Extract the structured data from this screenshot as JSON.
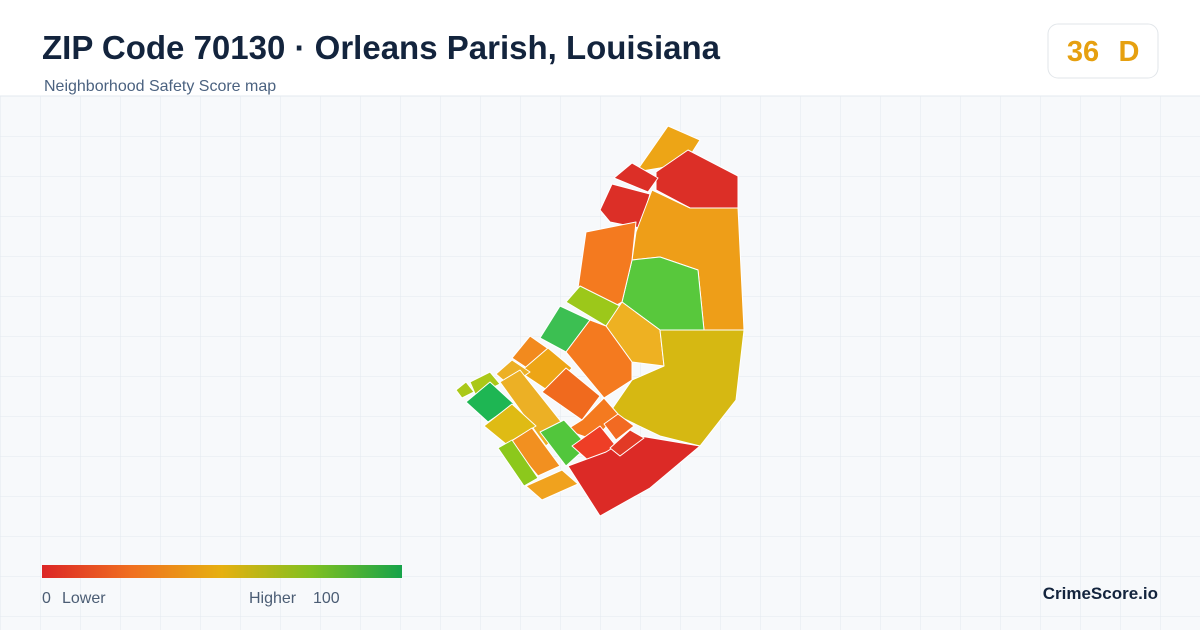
{
  "header": {
    "title": "ZIP Code 70130 · Orleans Parish, Louisiana",
    "subtitle": "Neighborhood Safety Score map"
  },
  "score": {
    "value": 36,
    "grade": "D"
  },
  "legend": {
    "min": 0,
    "min_label": "Lower",
    "max_label": "Higher",
    "max": 100
  },
  "brand": "CrimeScore.io"
}
